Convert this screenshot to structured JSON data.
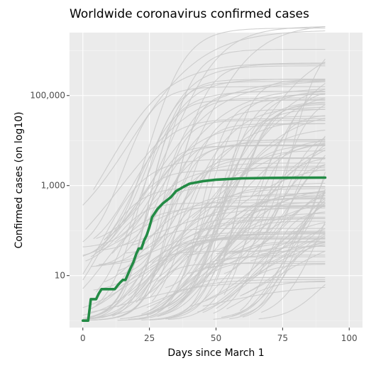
{
  "chart_data": {
    "type": "line",
    "title": "Worldwide coronavirus confirmed cases",
    "xlabel": "Days since March 1",
    "ylabel": "Confirmed cases (on log10)",
    "x_ticks": [
      0,
      25,
      50,
      75,
      100
    ],
    "x_tick_labels": [
      "0",
      "25",
      "50",
      "75",
      "100"
    ],
    "y_ticks": [
      10,
      1000,
      100000
    ],
    "y_tick_labels": [
      "10",
      "1,000",
      "100,000"
    ],
    "xlim": [
      -5,
      105
    ],
    "ylim": [
      0.7,
      2500000
    ],
    "y_scale": "log10",
    "grid": true,
    "background_series_note": "many gray country lines",
    "highlight_series": {
      "x": [
        0,
        2,
        3,
        5,
        6,
        7,
        10,
        12,
        13,
        14,
        15,
        16,
        17,
        18,
        19,
        20,
        21,
        22,
        23,
        24,
        25,
        26,
        28,
        30,
        33,
        35,
        38,
        40,
        45,
        50,
        55,
        60,
        70,
        80,
        91
      ],
      "values": [
        1,
        1,
        3,
        3,
        4,
        5,
        5,
        5,
        6,
        7,
        8,
        8,
        11,
        15,
        20,
        30,
        40,
        40,
        60,
        80,
        120,
        200,
        300,
        400,
        550,
        750,
        950,
        1100,
        1250,
        1350,
        1400,
        1450,
        1480,
        1490,
        1500
      ]
    },
    "colors": {
      "panel": "#ebebeb",
      "grid_major": "#ffffff",
      "grid_minor": "#f5f5f5",
      "background_lines": "#c8c8c8",
      "highlight": "#238b45"
    }
  }
}
